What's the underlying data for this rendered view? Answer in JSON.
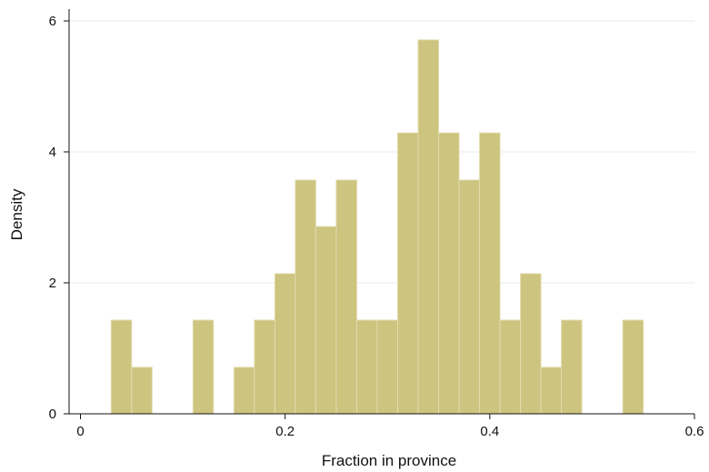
{
  "chart_data": {
    "type": "bar",
    "subtype": "histogram",
    "title": "",
    "xlabel": "Fraction in province",
    "ylabel": "Density",
    "xlim": [
      0,
      0.6
    ],
    "ylim": [
      0,
      6
    ],
    "xticks": [
      0,
      0.2,
      0.4,
      0.6
    ],
    "xtick_labels": [
      "0",
      "0.2",
      "0.4",
      "0.6"
    ],
    "yticks": [
      0,
      2,
      4,
      6
    ],
    "ytick_labels": [
      "0",
      "2",
      "4",
      "6"
    ],
    "grid": "horizontal",
    "bar_color": "#ccc47f",
    "bar_edge_color": "#e2dcae",
    "bins": [
      {
        "x0": 0.03,
        "x1": 0.05,
        "value": 1.43
      },
      {
        "x0": 0.05,
        "x1": 0.07,
        "value": 0.71
      },
      {
        "x0": 0.11,
        "x1": 0.13,
        "value": 1.43
      },
      {
        "x0": 0.15,
        "x1": 0.17,
        "value": 0.71
      },
      {
        "x0": 0.17,
        "x1": 0.19,
        "value": 1.43
      },
      {
        "x0": 0.19,
        "x1": 0.21,
        "value": 2.14
      },
      {
        "x0": 0.21,
        "x1": 0.23,
        "value": 3.57
      },
      {
        "x0": 0.23,
        "x1": 0.25,
        "value": 2.86
      },
      {
        "x0": 0.25,
        "x1": 0.27,
        "value": 3.57
      },
      {
        "x0": 0.27,
        "x1": 0.29,
        "value": 1.43
      },
      {
        "x0": 0.29,
        "x1": 0.31,
        "value": 1.43
      },
      {
        "x0": 0.31,
        "x1": 0.33,
        "value": 4.29
      },
      {
        "x0": 0.33,
        "x1": 0.35,
        "value": 5.71
      },
      {
        "x0": 0.35,
        "x1": 0.37,
        "value": 4.29
      },
      {
        "x0": 0.37,
        "x1": 0.39,
        "value": 3.57
      },
      {
        "x0": 0.39,
        "x1": 0.41,
        "value": 4.29
      },
      {
        "x0": 0.41,
        "x1": 0.43,
        "value": 1.43
      },
      {
        "x0": 0.43,
        "x1": 0.45,
        "value": 2.14
      },
      {
        "x0": 0.45,
        "x1": 0.47,
        "value": 0.71
      },
      {
        "x0": 0.47,
        "x1": 0.49,
        "value": 1.43
      },
      {
        "x0": 0.53,
        "x1": 0.55,
        "value": 1.43
      }
    ]
  }
}
